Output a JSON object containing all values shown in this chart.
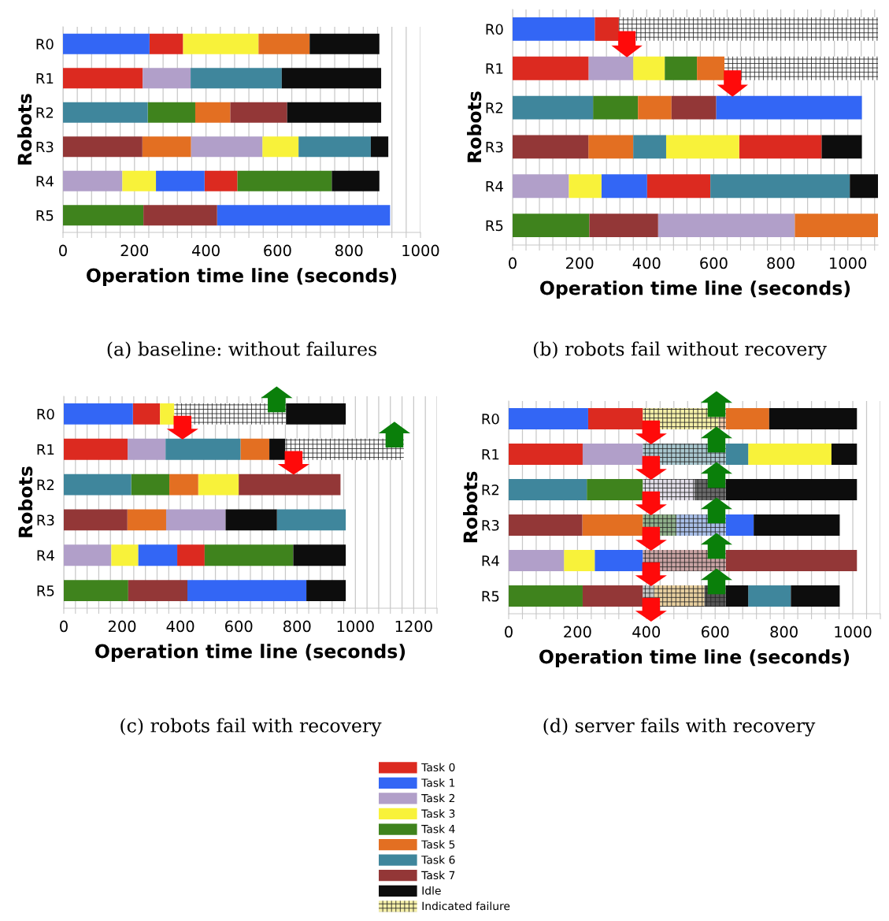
{
  "chart_data": [
    {
      "type": "bar",
      "orientation": "horizontal",
      "xlabel": "Operation time line (seconds)",
      "ylabel": "Robots",
      "annotations": [
        "(a) baseline: without failures"
      ],
      "grid": "x",
      "categories": [
        "R0",
        "R1",
        "R2",
        "R3",
        "R4",
        "R5"
      ],
      "xlim": [
        0,
        1000
      ],
      "xticks": [
        0,
        {
          "value": 40,
          "label": null
        },
        {
          "value": 80,
          "label": null
        },
        {
          "value": 120,
          "label": null
        },
        {
          "value": 160,
          "label": null
        },
        200,
        {
          "value": 240,
          "label": null
        },
        {
          "value": 280,
          "label": null
        },
        {
          "value": 320,
          "label": null
        },
        {
          "value": 360,
          "label": null
        },
        400,
        {
          "value": 440,
          "label": null
        },
        {
          "value": 480,
          "label": null
        },
        {
          "value": 520,
          "label": null
        },
        {
          "value": 560,
          "label": null
        },
        600,
        {
          "value": 640,
          "label": null
        },
        {
          "value": 680,
          "label": null
        },
        {
          "value": 720,
          "label": null
        },
        {
          "value": 760,
          "label": null
        },
        800,
        {
          "value": 840,
          "label": null
        },
        {
          "value": 880,
          "label": null
        },
        {
          "value": 920,
          "label": null
        },
        {
          "value": 960,
          "label": null
        },
        1000
      ],
      "series": [
        {
          "color": "#dc2a20",
          "base": [
            242,
            0,
            null,
            null,
            396,
            null
          ],
          "values": [
            94,
            223,
            null,
            null,
            92,
            null
          ]
        },
        {
          "color": "#3366f5",
          "base": [
            0,
            null,
            null,
            null,
            260,
            431
          ],
          "values": [
            242,
            null,
            null,
            null,
            136,
            484
          ]
        },
        {
          "color": "#b19fc9",
          "base": [
            null,
            223,
            null,
            358,
            0,
            null
          ],
          "values": [
            null,
            134,
            null,
            200,
            166,
            null
          ]
        },
        {
          "color": "#f8f23a",
          "base": [
            336,
            null,
            null,
            558,
            166,
            null
          ],
          "values": [
            211,
            null,
            null,
            101,
            94,
            null
          ]
        },
        {
          "color": "#3f831d",
          "base": [
            null,
            null,
            237,
            null,
            488,
            0
          ],
          "values": [
            null,
            null,
            133,
            null,
            264,
            225
          ]
        },
        {
          "color": "#e36f22",
          "base": [
            547,
            null,
            370,
            222,
            null,
            null
          ],
          "values": [
            143,
            null,
            98,
            136,
            null,
            null
          ]
        },
        {
          "color": "#3f869c",
          "base": [
            null,
            357,
            0,
            659,
            null,
            null
          ],
          "values": [
            null,
            255,
            237,
            202,
            null,
            null
          ]
        },
        {
          "color": "#933737",
          "base": [
            null,
            null,
            468,
            0,
            null,
            225
          ],
          "values": [
            null,
            null,
            159,
            222,
            null,
            206
          ]
        },
        {
          "color": "#0d0d0d",
          "base": [
            690,
            612,
            627,
            861,
            752,
            null
          ],
          "values": [
            195,
            278,
            263,
            49,
            133,
            null
          ]
        }
      ]
    },
    {
      "type": "bar",
      "orientation": "horizontal",
      "xlabel": "Operation time line (seconds)",
      "ylabel": "Robots",
      "annotations": [
        "(b) robots fail without recovery"
      ],
      "grid": "x",
      "categories": [
        "R0",
        "R1",
        "R2",
        "R3",
        "R4",
        "R5"
      ],
      "xlim": [
        0,
        1090
      ],
      "xticks": [
        0,
        {
          "value": 40,
          "label": null
        },
        {
          "value": 80,
          "label": null
        },
        {
          "value": 120,
          "label": null
        },
        {
          "value": 160,
          "label": null
        },
        200,
        {
          "value": 240,
          "label": null
        },
        {
          "value": 280,
          "label": null
        },
        {
          "value": 320,
          "label": null
        },
        {
          "value": 360,
          "label": null
        },
        400,
        {
          "value": 440,
          "label": null
        },
        {
          "value": 480,
          "label": null
        },
        {
          "value": 520,
          "label": null
        },
        {
          "value": 560,
          "label": null
        },
        600,
        {
          "value": 640,
          "label": null
        },
        {
          "value": 680,
          "label": null
        },
        {
          "value": 720,
          "label": null
        },
        {
          "value": 760,
          "label": null
        },
        800,
        {
          "value": 840,
          "label": null
        },
        {
          "value": 880,
          "label": null
        },
        {
          "value": 920,
          "label": null
        },
        {
          "value": 960,
          "label": null
        },
        1000,
        {
          "value": 1040,
          "label": null
        },
        {
          "value": 1080,
          "label": null
        }
      ],
      "series": [
        {
          "color": "#dc2a20",
          "base": [
            245,
            0,
            null,
            676,
            401,
            null
          ],
          "values": [
            72,
            227,
            null,
            246,
            189,
            null
          ]
        },
        {
          "color": "#3366f5",
          "base": [
            0,
            null,
            607,
            null,
            265,
            null
          ],
          "values": [
            245,
            null,
            435,
            null,
            136,
            null
          ]
        },
        {
          "color": "#b19fc9",
          "base": [
            null,
            227,
            null,
            null,
            0,
            434
          ],
          "values": [
            null,
            133,
            null,
            null,
            168,
            408
          ]
        },
        {
          "color": "#f8f23a",
          "base": [
            null,
            360,
            null,
            458,
            168,
            null
          ],
          "values": [
            null,
            94,
            null,
            218,
            97,
            null
          ]
        },
        {
          "color": "#3f831d",
          "base": [
            null,
            454,
            240,
            null,
            null,
            0
          ],
          "values": [
            null,
            96,
            134,
            null,
            null,
            229
          ]
        },
        {
          "color": "#e36f22",
          "base": [
            null,
            550,
            374,
            226,
            null,
            842
          ],
          "values": [
            null,
            82,
            100,
            134,
            null,
            248
          ]
        },
        {
          "color": "#3f869c",
          "base": [
            null,
            null,
            0,
            360,
            590,
            null
          ],
          "values": [
            null,
            null,
            240,
            98,
            416,
            null
          ]
        },
        {
          "color": "#933737",
          "base": [
            null,
            null,
            474,
            0,
            null,
            229
          ],
          "values": [
            null,
            null,
            133,
            226,
            null,
            205
          ]
        },
        {
          "color": "#0d0d0d",
          "base": [
            null,
            null,
            null,
            922,
            1006,
            null
          ],
          "values": [
            null,
            null,
            null,
            120,
            84,
            null
          ]
        },
        {
          "color": "#ffffff",
          "marker": "cross",
          "base": [
            317,
            632,
            null,
            null,
            null,
            null
          ],
          "values": [
            773,
            458,
            null,
            null,
            null,
            null
          ]
        }
      ]
    },
    {
      "type": "bar",
      "orientation": "horizontal",
      "xlabel": "Operation time line (seconds)",
      "ylabel": "Robots",
      "annotations": [
        "(c) robots fail with recovery"
      ],
      "grid": "x",
      "categories": [
        "R0",
        "R1",
        "R2",
        "R3",
        "R4",
        "R5"
      ],
      "xlim": [
        0,
        1280
      ],
      "xticks": [
        0,
        {
          "value": 40,
          "label": null
        },
        {
          "value": 80,
          "label": null
        },
        {
          "value": 120,
          "label": null
        },
        {
          "value": 160,
          "label": null
        },
        200,
        {
          "value": 240,
          "label": null
        },
        {
          "value": 280,
          "label": null
        },
        {
          "value": 320,
          "label": null
        },
        {
          "value": 360,
          "label": null
        },
        400,
        {
          "value": 440,
          "label": null
        },
        {
          "value": 480,
          "label": null
        },
        {
          "value": 520,
          "label": null
        },
        {
          "value": 560,
          "label": null
        },
        600,
        {
          "value": 640,
          "label": null
        },
        {
          "value": 680,
          "label": null
        },
        {
          "value": 720,
          "label": null
        },
        {
          "value": 760,
          "label": null
        },
        800,
        {
          "value": 840,
          "label": null
        },
        {
          "value": 880,
          "label": null
        },
        {
          "value": 920,
          "label": null
        },
        {
          "value": 960,
          "label": null
        },
        1000,
        {
          "value": 1040,
          "label": null
        },
        {
          "value": 1080,
          "label": null
        },
        {
          "value": 1120,
          "label": null
        },
        {
          "value": 1160,
          "label": null
        },
        1200,
        {
          "value": 1240,
          "label": null
        },
        {
          "value": 1280,
          "label": null
        }
      ],
      "series": [
        {
          "color": "#dc2a20",
          "base": [
            237,
            0,
            null,
            null,
            389,
            null
          ],
          "values": [
            93,
            219,
            null,
            null,
            94,
            null
          ]
        },
        {
          "color": "#3366f5",
          "base": [
            0,
            null,
            null,
            null,
            255,
            424
          ],
          "values": [
            237,
            null,
            null,
            null,
            134,
            408
          ]
        },
        {
          "color": "#b19fc9",
          "base": [
            null,
            219,
            null,
            351,
            0,
            null
          ],
          "values": [
            null,
            130,
            null,
            204,
            163,
            null
          ]
        },
        {
          "color": "#f8f23a",
          "base": [
            330,
            null,
            461,
            null,
            163,
            null
          ],
          "values": [
            49,
            null,
            139,
            null,
            92,
            null
          ]
        },
        {
          "color": "#3f831d",
          "base": [
            null,
            null,
            231,
            null,
            483,
            0
          ],
          "values": [
            null,
            null,
            131,
            null,
            304,
            221
          ]
        },
        {
          "color": "#e36f22",
          "base": [
            null,
            606,
            362,
            218,
            null,
            null
          ],
          "values": [
            null,
            99,
            99,
            133,
            null,
            null
          ]
        },
        {
          "color": "#3f869c",
          "base": [
            null,
            349,
            0,
            731,
            null,
            null
          ],
          "values": [
            null,
            257,
            231,
            236,
            null,
            null
          ]
        },
        {
          "color": "#933737",
          "base": [
            null,
            null,
            600,
            0,
            null,
            221
          ],
          "values": [
            null,
            null,
            349,
            218,
            null,
            203
          ]
        },
        {
          "color": "#0d0d0d",
          "base": [
            762,
            705,
            null,
            555,
            787,
            832
          ],
          "values": [
            205,
            55,
            null,
            176,
            180,
            135
          ]
        },
        {
          "color": "#ffffff",
          "marker": "cross",
          "base": [
            379,
            760,
            null,
            null,
            null,
            null
          ],
          "values": [
            383,
            406,
            null,
            null,
            null,
            null
          ]
        }
      ]
    },
    {
      "type": "bar",
      "orientation": "horizontal",
      "xlabel": "Operation time line (seconds)",
      "ylabel": "Robots",
      "annotations": [
        "(d) server fails with recovery"
      ],
      "grid": "x",
      "legend": "bottom",
      "categories": [
        "R0",
        "R1",
        "R2",
        "R3",
        "R4",
        "R5"
      ],
      "xlim": [
        0,
        1080
      ],
      "xticks": [
        0,
        {
          "value": 40,
          "label": null
        },
        {
          "value": 80,
          "label": null
        },
        {
          "value": 120,
          "label": null
        },
        {
          "value": 160,
          "label": null
        },
        200,
        {
          "value": 240,
          "label": null
        },
        {
          "value": 280,
          "label": null
        },
        {
          "value": 320,
          "label": null
        },
        {
          "value": 360,
          "label": null
        },
        400,
        {
          "value": 440,
          "label": null
        },
        {
          "value": 480,
          "label": null
        },
        {
          "value": 520,
          "label": null
        },
        {
          "value": 560,
          "label": null
        },
        600,
        {
          "value": 640,
          "label": null
        },
        {
          "value": 680,
          "label": null
        },
        {
          "value": 720,
          "label": null
        },
        {
          "value": 760,
          "label": null
        },
        800,
        {
          "value": 840,
          "label": null
        },
        {
          "value": 880,
          "label": null
        },
        {
          "value": 920,
          "label": null
        },
        {
          "value": 960,
          "label": null
        },
        1000,
        {
          "value": 1040,
          "label": null
        },
        {
          "value": 1080,
          "label": null
        }
      ],
      "series": [
        {
          "name": "Task 0",
          "color": "#dc2a20",
          "base": [
            231,
            0,
            null,
            null,
            null,
            null
          ],
          "values": [
            159,
            215,
            null,
            null,
            null,
            null
          ]
        },
        {
          "name": "Task 1",
          "color": "#3366f5",
          "base": [
            0,
            null,
            null,
            631,
            250,
            null
          ],
          "values": [
            231,
            null,
            null,
            81,
            140,
            null
          ]
        },
        {
          "name": "Task 2",
          "color": "#b19fc9",
          "base": [
            null,
            215,
            null,
            null,
            0,
            null
          ],
          "values": [
            null,
            175,
            null,
            null,
            161,
            null
          ]
        },
        {
          "name": "Task 3",
          "color": "#f8f23a",
          "base": [
            null,
            696,
            null,
            null,
            161,
            null
          ],
          "values": [
            null,
            242,
            null,
            null,
            89,
            null
          ]
        },
        {
          "name": "Task 4",
          "color": "#3f831d",
          "base": [
            null,
            null,
            227,
            null,
            null,
            0
          ],
          "values": [
            null,
            null,
            163,
            null,
            null,
            215
          ]
        },
        {
          "name": "Task 5",
          "color": "#e36f22",
          "base": [
            631,
            null,
            null,
            214,
            null,
            null
          ],
          "values": [
            126,
            null,
            null,
            176,
            null,
            null
          ]
        },
        {
          "name": "Task 6",
          "color": "#3f869c",
          "base": [
            null,
            631,
            0,
            null,
            null,
            696
          ],
          "values": [
            null,
            65,
            227,
            null,
            null,
            124
          ]
        },
        {
          "name": "Task 7",
          "color": "#933737",
          "base": [
            null,
            null,
            null,
            0,
            631,
            215
          ],
          "values": [
            null,
            null,
            null,
            214,
            381,
            175
          ]
        },
        {
          "name": "Idle",
          "color": "#0d0d0d",
          "base": [
            757,
            938,
            631,
            712,
            null,
            631
          ],
          "values": [
            255,
            74,
            381,
            250,
            null,
            65
          ]
        },
        {
          "color": "#0d0d0d",
          "base": [
            null,
            null,
            null,
            null,
            null,
            820
          ],
          "values": [
            null,
            null,
            null,
            null,
            null,
            142
          ]
        },
        {
          "name": "Indicated failure",
          "marker": "cross",
          "colors": [
            "#f4efa8",
            "#a9c7cf",
            "#e2dee8",
            "#8fb08a",
            "#c9a3a3",
            "#c4c4c4"
          ],
          "base": [
            390,
            390,
            390,
            390,
            390,
            390
          ],
          "values": [
            220,
            241,
            150,
            98,
            241,
            32
          ]
        },
        {
          "marker": "cross",
          "colors": [
            "#eec9a8",
            null,
            "#6a6a6a",
            "#a9bfe8",
            null,
            "#e7cf9f"
          ],
          "base": [
            610,
            null,
            540,
            488,
            null,
            422
          ],
          "values": [
            21,
            null,
            91,
            143,
            null,
            147
          ]
        },
        {
          "color": "#555555",
          "marker": "cross",
          "base": [
            null,
            null,
            null,
            null,
            null,
            569
          ],
          "values": [
            null,
            null,
            null,
            null,
            null,
            62
          ]
        }
      ]
    }
  ]
}
